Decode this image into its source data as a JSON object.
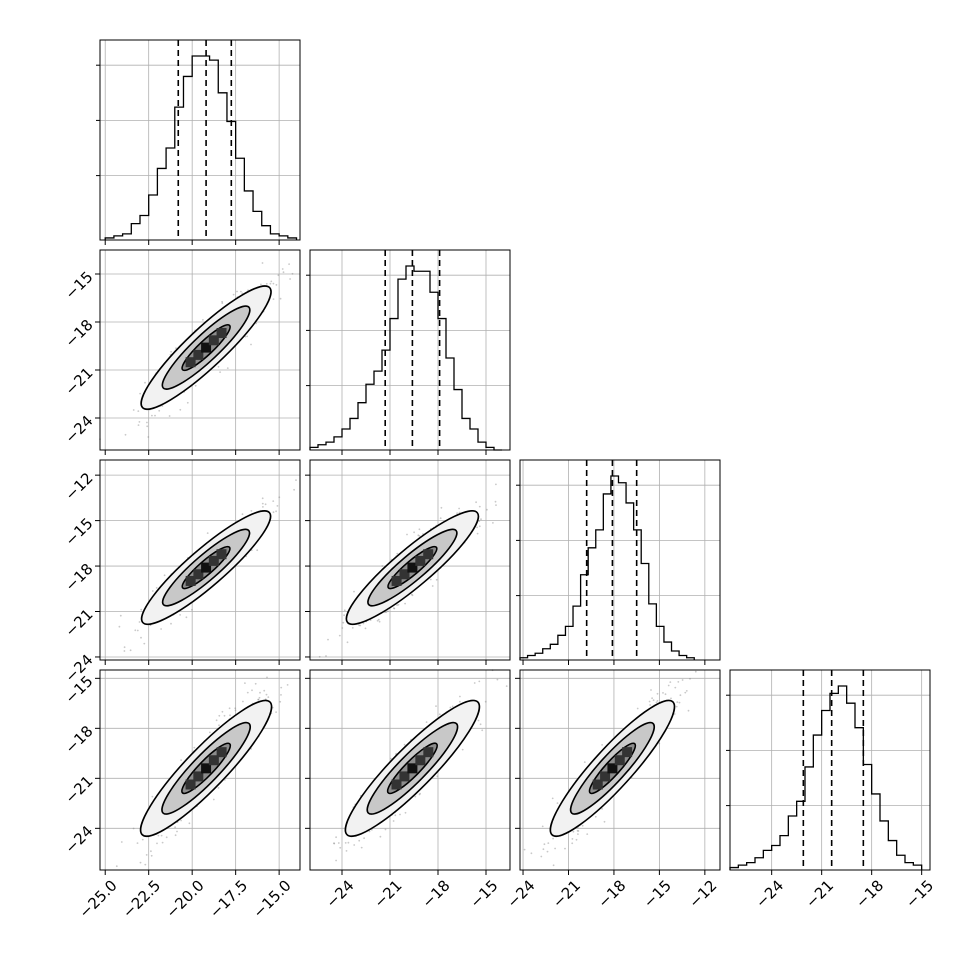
{
  "chart_data": {
    "type": "corner",
    "parameters": [
      {
        "index": 0,
        "ticks": [
          -25.0,
          -22.5,
          -20.0,
          -17.5,
          -15.0
        ],
        "tick_labels": [
          "−25.0",
          "−22.5",
          "−20.0",
          "−17.5",
          "−15.0"
        ],
        "range": [
          -25.3,
          -13.8
        ],
        "quantiles": [
          -20.8,
          -19.2,
          -17.75
        ],
        "hist_bins": [
          -25.0,
          -24.5,
          -24.0,
          -23.5,
          -23.0,
          -22.5,
          -22.0,
          -21.5,
          -21.0,
          -20.5,
          -20.0,
          -19.5,
          -19.0,
          -18.5,
          -18.0,
          -17.5,
          -17.0,
          -16.5,
          -16.0,
          -15.5,
          -15.0,
          -14.5,
          -14.0
        ],
        "hist_counts": [
          1,
          2,
          3,
          8,
          12,
          22,
          35,
          45,
          65,
          80,
          90,
          90,
          88,
          72,
          58,
          40,
          24,
          14,
          7,
          3,
          2,
          1
        ]
      },
      {
        "index": 1,
        "ticks": [
          -24,
          -21,
          -18,
          -15
        ],
        "tick_labels": [
          "−24",
          "−21",
          "−18",
          "−15"
        ],
        "range": [
          -26.0,
          -13.5
        ],
        "quantiles": [
          -21.3,
          -19.6,
          -17.9
        ],
        "hist_bins": [
          -26.0,
          -25.5,
          -25.0,
          -24.5,
          -24.0,
          -23.5,
          -23.0,
          -22.5,
          -22.0,
          -21.5,
          -21.0,
          -20.5,
          -20.0,
          -19.5,
          -19.0,
          -18.5,
          -18.0,
          -17.5,
          -17.0,
          -16.5,
          -16.0,
          -15.5,
          -15.0,
          -14.5,
          -14.0
        ],
        "hist_counts": [
          1,
          2,
          3,
          5,
          8,
          12,
          18,
          25,
          30,
          38,
          50,
          65,
          70,
          68,
          68,
          60,
          50,
          35,
          23,
          12,
          8,
          3,
          1,
          0
        ]
      },
      {
        "index": 2,
        "ticks": [
          -24,
          -21,
          -18,
          -15,
          -12
        ],
        "tick_labels": [
          "−24",
          "−21",
          "−18",
          "−15",
          "−12"
        ],
        "range": [
          -24.2,
          -11.0
        ],
        "quantiles": [
          -19.8,
          -18.1,
          -16.5
        ],
        "hist_bins": [
          -24.2,
          -23.7,
          -23.2,
          -22.7,
          -22.2,
          -21.7,
          -21.2,
          -20.7,
          -20.2,
          -19.7,
          -19.2,
          -18.7,
          -18.2,
          -17.7,
          -17.2,
          -16.7,
          -16.2,
          -15.7,
          -15.2,
          -14.7,
          -14.2,
          -13.7,
          -13.2,
          -12.7
        ],
        "hist_counts": [
          1,
          2,
          3,
          5,
          7,
          11,
          15,
          24,
          38,
          50,
          58,
          74,
          82,
          79,
          70,
          58,
          43,
          25,
          15,
          8,
          4,
          2,
          1
        ]
      },
      {
        "index": 3,
        "ticks": [
          -24,
          -21,
          -18,
          -15
        ],
        "tick_labels": [
          "−24",
          "−21",
          "−18",
          "−15"
        ],
        "range": [
          -26.5,
          -14.5
        ],
        "quantiles": [
          -22.1,
          -20.4,
          -18.5
        ],
        "hist_bins": [
          -26.5,
          -26.0,
          -25.5,
          -25.0,
          -24.5,
          -24.0,
          -23.5,
          -23.0,
          -22.5,
          -22.0,
          -21.5,
          -21.0,
          -20.5,
          -20.0,
          -19.5,
          -19.0,
          -18.5,
          -18.0,
          -17.5,
          -17.0,
          -16.5,
          -16.0,
          -15.5,
          -15.0
        ],
        "hist_counts": [
          1,
          2,
          3,
          5,
          8,
          10,
          14,
          22,
          28,
          42,
          55,
          65,
          72,
          75,
          68,
          58,
          43,
          31,
          20,
          12,
          6,
          3,
          2
        ]
      }
    ],
    "xlabel": "",
    "ylabel": "",
    "grid": true,
    "contour_levels": 3
  }
}
